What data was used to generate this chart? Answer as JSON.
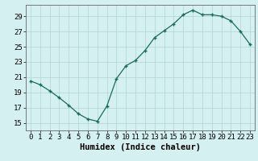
{
  "x": [
    0,
    1,
    2,
    3,
    4,
    5,
    6,
    7,
    8,
    9,
    10,
    11,
    12,
    13,
    14,
    15,
    16,
    17,
    18,
    19,
    20,
    21,
    22,
    23
  ],
  "y": [
    20.5,
    20.0,
    19.2,
    18.3,
    17.3,
    16.2,
    15.5,
    15.2,
    17.2,
    20.8,
    22.5,
    23.2,
    24.5,
    26.2,
    27.1,
    28.0,
    29.2,
    29.8,
    29.2,
    29.2,
    29.0,
    28.4,
    27.0,
    25.3
  ],
  "line_color": "#1a6b5a",
  "marker": "+",
  "marker_size": 3.5,
  "marker_lw": 1.0,
  "bg_color": "#d4f0f0",
  "grid_color": "#b0d4d4",
  "xlabel": "Humidex (Indice chaleur)",
  "xlim": [
    -0.5,
    23.5
  ],
  "ylim": [
    14.0,
    30.5
  ],
  "yticks": [
    15,
    17,
    19,
    21,
    23,
    25,
    27,
    29
  ],
  "xticks": [
    0,
    1,
    2,
    3,
    4,
    5,
    6,
    7,
    8,
    9,
    10,
    11,
    12,
    13,
    14,
    15,
    16,
    17,
    18,
    19,
    20,
    21,
    22,
    23
  ],
  "tick_fontsize": 6.5,
  "xlabel_fontsize": 7.5,
  "font_family": "monospace"
}
